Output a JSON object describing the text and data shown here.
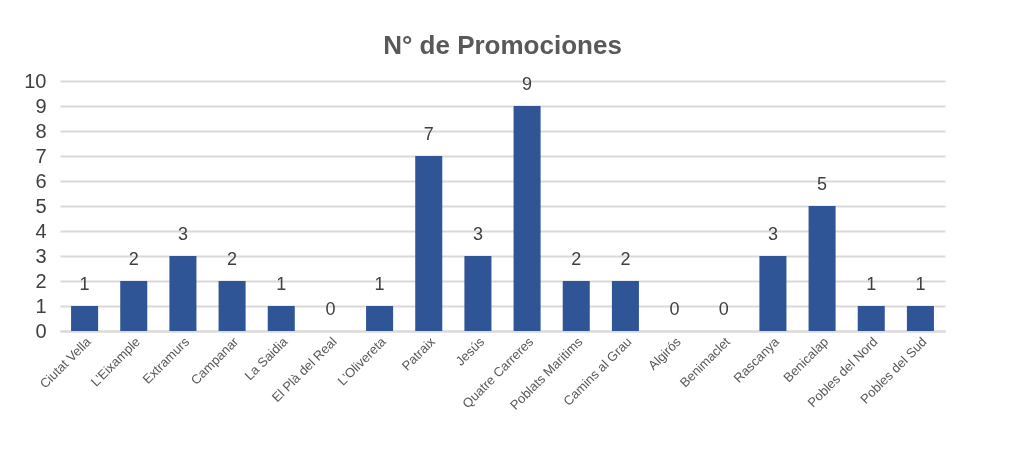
{
  "chart_data": {
    "type": "bar",
    "title": "N° de Promociones",
    "categories": [
      "Ciutat Vella",
      "L'Eixample",
      "Extramurs",
      "Campanar",
      "La Saidia",
      "El Plà del Real",
      "L'Olivereta",
      "Patraix",
      "Jesús",
      "Quatre Carreres",
      "Poblats Maritims",
      "Camins al Grau",
      "Algirós",
      "Benimaclet",
      "Rascanya",
      "Benicalap",
      "Pobles del Nord",
      "Pobles del Sud"
    ],
    "values": [
      1,
      2,
      3,
      2,
      1,
      0,
      1,
      7,
      3,
      9,
      2,
      2,
      0,
      0,
      3,
      5,
      1,
      1
    ],
    "color": "#2f5597",
    "ylim": [
      0,
      10
    ],
    "yticks": [
      0,
      1,
      2,
      3,
      4,
      5,
      6,
      7,
      8,
      9,
      10
    ],
    "grid": "y",
    "data_labels": true
  }
}
